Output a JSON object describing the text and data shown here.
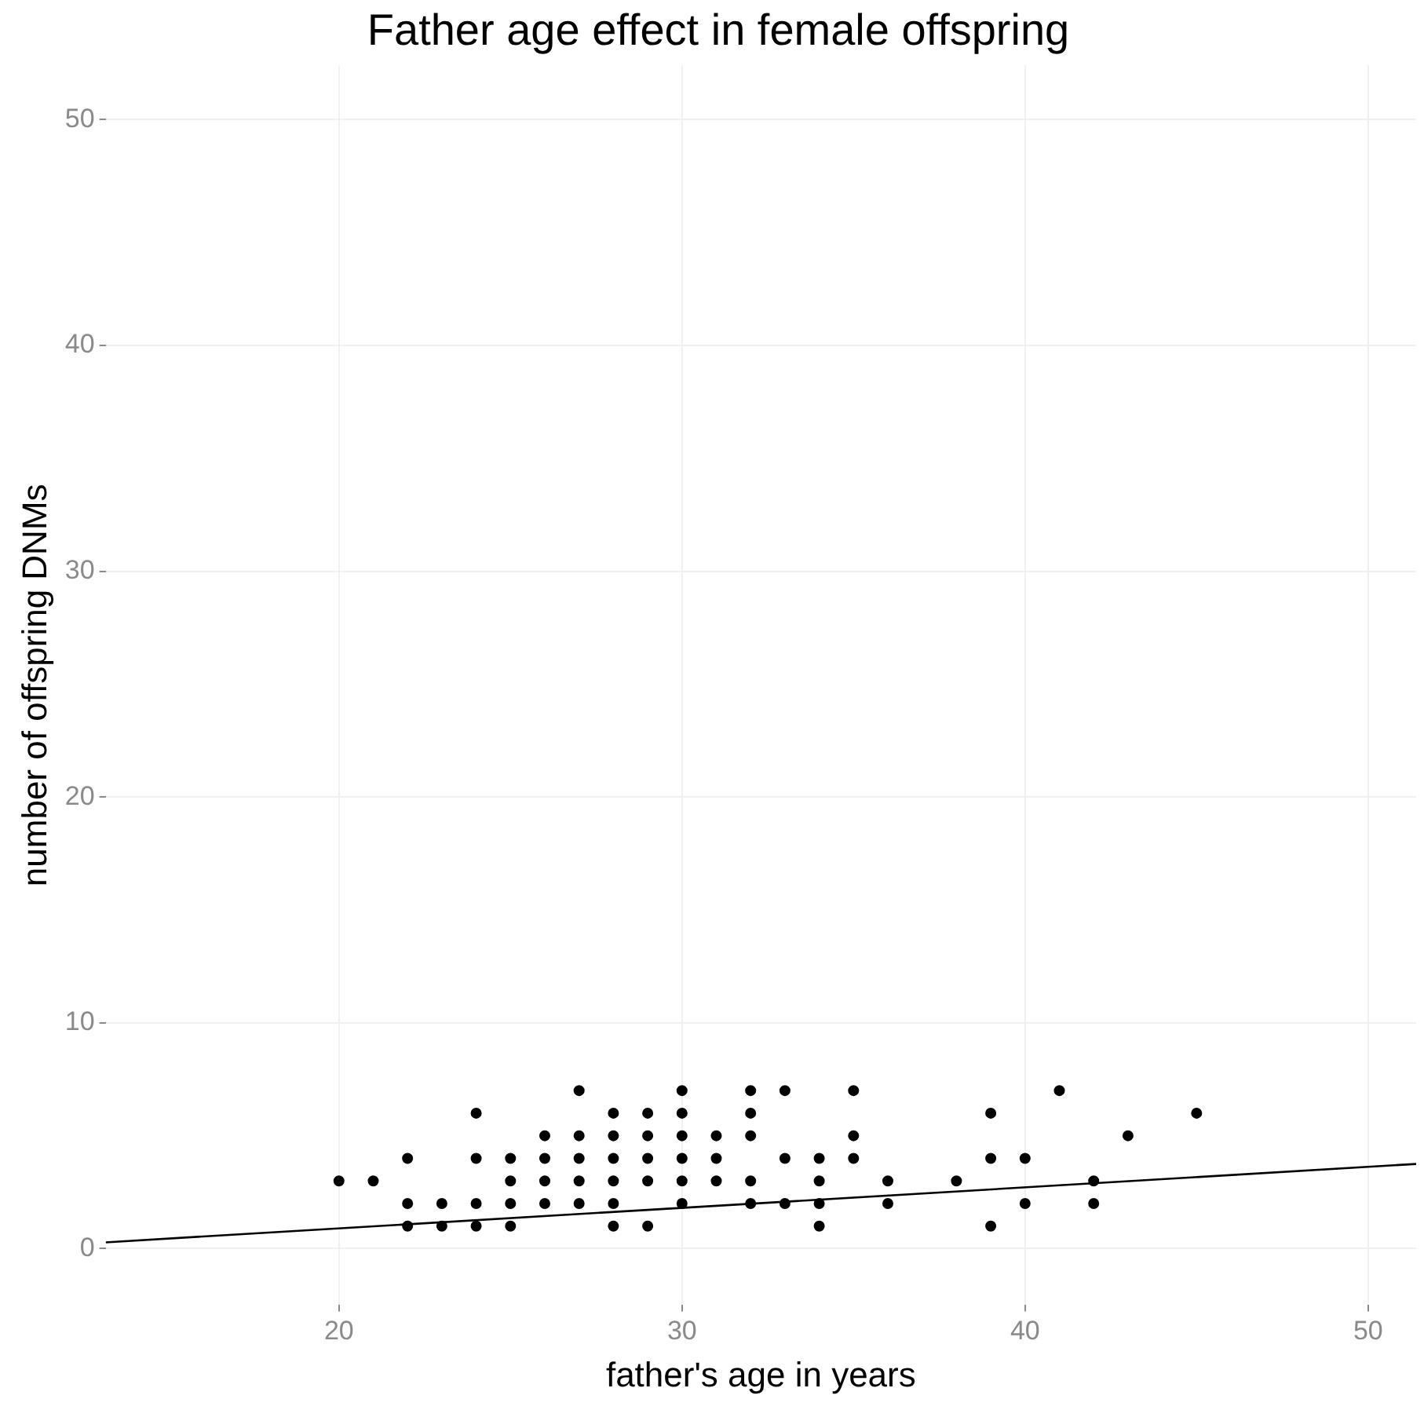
{
  "chart_data": {
    "type": "scatter",
    "title": "Father age effect in female offspring",
    "xlabel": "father's age in years",
    "ylabel": "number of offspring DNMs",
    "xlim": [
      13.2,
      51.4
    ],
    "xticks": [
      20,
      30,
      40,
      50
    ],
    "ylim": [
      -2.5,
      52.4
    ],
    "yticks": [
      0,
      10,
      20,
      30,
      40,
      50
    ],
    "grid": true,
    "marker": "circle",
    "legend": false,
    "series": [
      {
        "color": "#000000",
        "x": [
          20,
          21,
          22,
          22,
          22,
          23,
          23,
          24,
          24,
          24,
          24,
          25,
          25,
          25,
          25,
          26,
          26,
          26,
          26,
          27,
          27,
          27,
          27,
          27,
          28,
          28,
          28,
          28,
          28,
          28,
          29,
          29,
          29,
          29,
          29,
          30,
          30,
          30,
          30,
          30,
          30,
          31,
          31,
          31,
          32,
          32,
          32,
          32,
          32,
          33,
          33,
          33,
          34,
          34,
          34,
          34,
          35,
          35,
          35,
          36,
          36,
          38,
          39,
          39,
          39,
          40,
          40,
          41,
          42,
          42,
          43,
          45
        ],
        "values": [
          3,
          3,
          4,
          2,
          1,
          2,
          1,
          6,
          4,
          2,
          1,
          4,
          3,
          2,
          1,
          5,
          4,
          3,
          2,
          7,
          5,
          4,
          3,
          2,
          6,
          5,
          4,
          3,
          2,
          1,
          6,
          5,
          4,
          3,
          1,
          7,
          6,
          5,
          4,
          3,
          2,
          5,
          4,
          3,
          7,
          6,
          5,
          3,
          2,
          7,
          4,
          2,
          4,
          3,
          2,
          1,
          7,
          5,
          4,
          3,
          2,
          3,
          6,
          4,
          1,
          4,
          2,
          7,
          3,
          2,
          5,
          6
        ]
      },
      {
        "type": "line",
        "marker": "none",
        "color": "#000000",
        "x": [
          13.2,
          51.4
        ],
        "values": [
          0.28,
          3.75
        ]
      }
    ]
  }
}
